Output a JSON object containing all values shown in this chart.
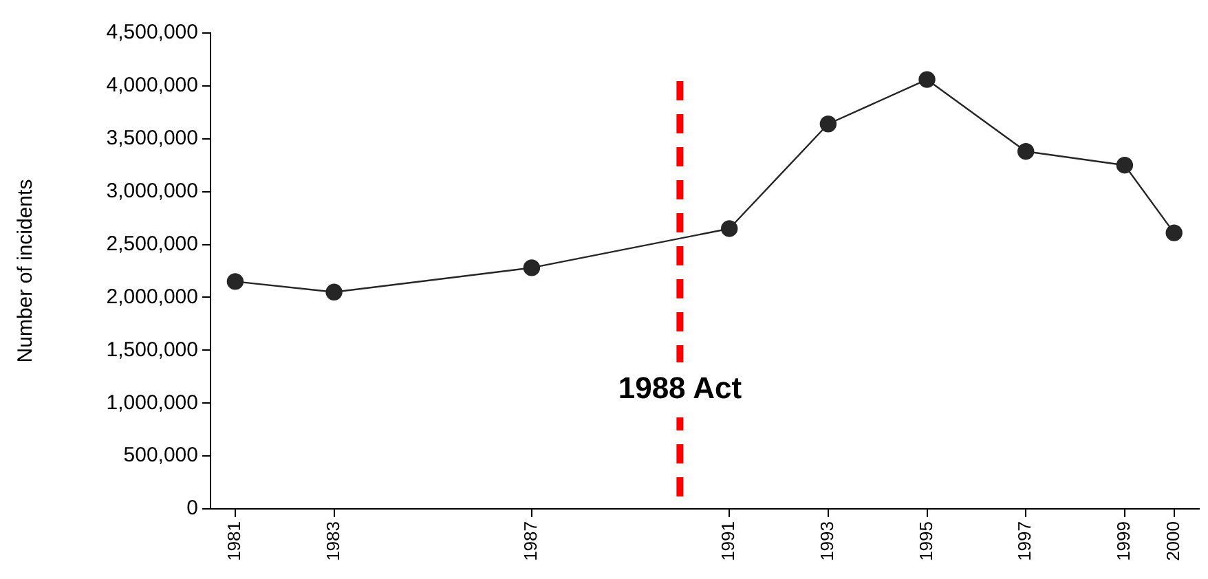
{
  "chart_data": {
    "type": "line",
    "ylabel": "Number of incidents",
    "x": [
      1981,
      1983,
      1987,
      1991,
      1993,
      1995,
      1997,
      1999,
      2000
    ],
    "series": [
      {
        "color": "#262626",
        "values": [
          2150000,
          2050000,
          2280000,
          2650000,
          3640000,
          4060000,
          3380000,
          3250000,
          2610000
        ]
      }
    ],
    "xlim": [
      1980.5,
      2000.5
    ],
    "xticks": [
      {
        "value": 1981,
        "label": "1981"
      },
      {
        "value": 1983,
        "label": "1983"
      },
      {
        "value": 1987,
        "label": "1987"
      },
      {
        "value": 1991,
        "label": "1991"
      },
      {
        "value": 1993,
        "label": "1993"
      },
      {
        "value": 1995,
        "label": "1995"
      },
      {
        "value": 1997,
        "label": "1997"
      },
      {
        "value": 1999,
        "label": "1999"
      },
      {
        "value": 2000,
        "label": "2000"
      }
    ],
    "ylim": [
      0,
      4500000
    ],
    "yticks": [
      0,
      {
        "value": 500000,
        "label": "500,000"
      },
      {
        "value": 1000000,
        "label": "1,000,000"
      },
      {
        "value": 1500000,
        "label": "1,500,000"
      },
      {
        "value": 2000000,
        "label": "2,000,000"
      },
      {
        "value": 2500000,
        "label": "2,500,000"
      },
      {
        "value": 3000000,
        "label": "3,000,000"
      },
      {
        "value": 3500000,
        "label": "3,500,000"
      },
      {
        "value": 4000000,
        "label": "4,000,000"
      },
      {
        "value": 4500000,
        "label": "4,500,000"
      }
    ],
    "ref_lines": [
      {
        "axis": "x",
        "value": 1990,
        "label": "1988 Act",
        "color": "#ff0000",
        "line_style": "dashed"
      }
    ],
    "marker": "circle",
    "line_style": "solid",
    "grid": false,
    "legend": false
  }
}
